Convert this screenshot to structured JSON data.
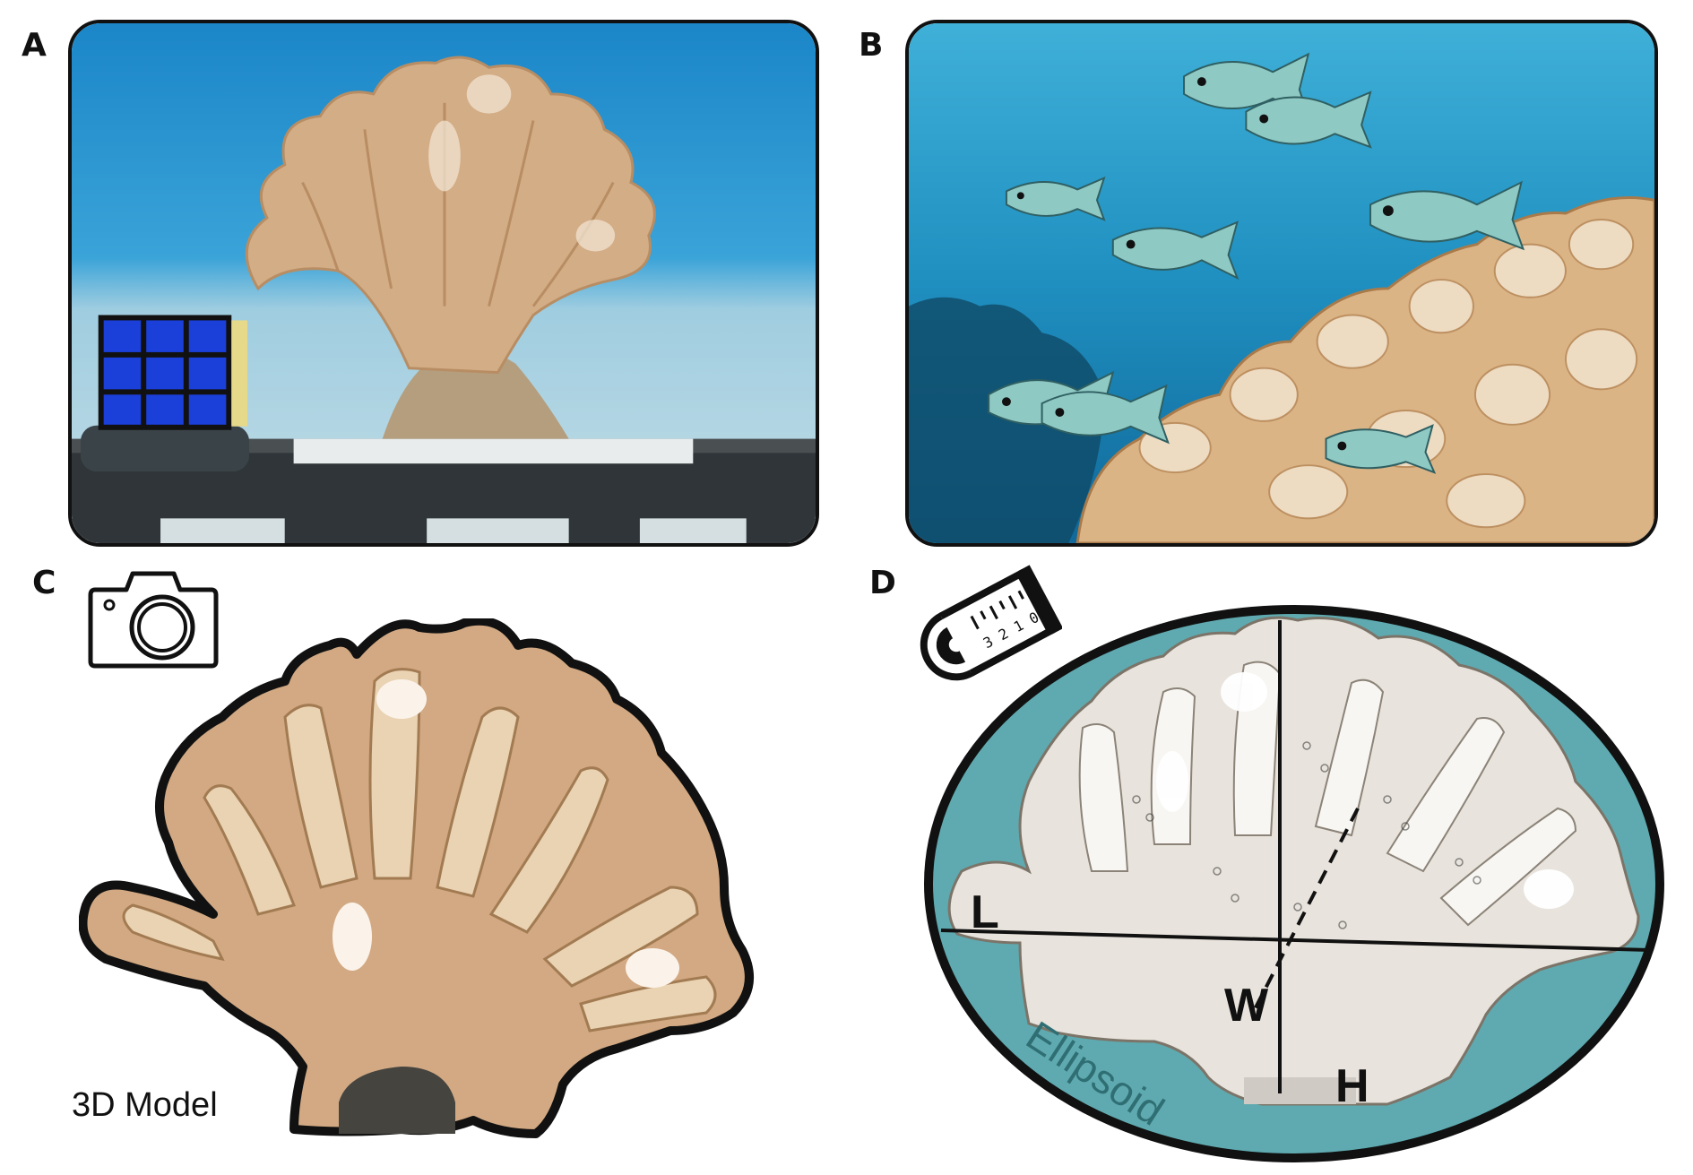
{
  "panels": {
    "a": {
      "letter": "A"
    },
    "b": {
      "letter": "B"
    },
    "c": {
      "letter": "C",
      "caption": "3D Model",
      "icon": "camera-icon"
    },
    "d": {
      "letter": "D",
      "icon": "tape-measure-icon",
      "tape_numbers": "3 2 1 0",
      "axis_labels": {
        "length": "L",
        "width": "W",
        "height": "H"
      },
      "shape_label": "Ellipsoid"
    }
  },
  "colors": {
    "water_top": "#1e8fd0",
    "water_deep": "#0a6fae",
    "sand": "#cfe3ea",
    "coral": "#d4a578",
    "coral_light": "#ecd8bd",
    "ellipse_fill": "#5faab0",
    "outline": "#111111"
  }
}
